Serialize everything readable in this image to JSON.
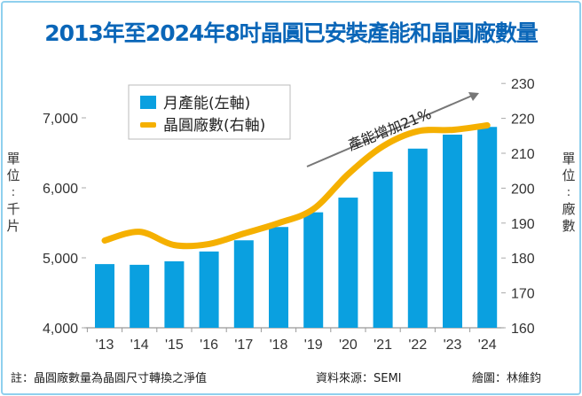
{
  "title": "2013年至2024年8吋晶圓已安裝產能和晶圓廠數量",
  "footer": {
    "note": "註：晶圓廠數量為晶圓尺寸轉換之淨值",
    "source": "資料來源：SEMI",
    "credit": "繪圖：林維鈞"
  },
  "colors": {
    "bar": "#0aa0e0",
    "line": "#f5b000",
    "title": "#0a66b8",
    "arrow": "#777777"
  },
  "chart_data": {
    "type": "bar+line",
    "title": "2013年至2024年8吋晶圓已安裝產能和晶圓廠數量",
    "categories": [
      "'13",
      "'14",
      "'15",
      "'16",
      "'17",
      "'18",
      "'19",
      "'20",
      "'21",
      "'22",
      "'23",
      "'24"
    ],
    "series": [
      {
        "name": "月產能(左軸)",
        "type": "bar",
        "axis": "left",
        "values": [
          4910,
          4900,
          4950,
          5090,
          5250,
          5440,
          5650,
          5860,
          6230,
          6560,
          6760,
          6870
        ]
      },
      {
        "name": "晶圓廠數(右軸)",
        "type": "line",
        "axis": "right",
        "values": [
          185,
          187.5,
          183.7,
          184,
          187,
          190,
          194,
          204,
          212,
          216.3,
          216.7,
          218
        ]
      }
    ],
    "left_axis": {
      "label": "單位：千片",
      "ylim": [
        4000,
        7400
      ],
      "ticks": [
        4000,
        5000,
        6000,
        7000
      ],
      "tick_labels": [
        "4,000",
        "5,000",
        "6,000",
        "7,000"
      ]
    },
    "right_axis": {
      "label": "單位：廠數",
      "ylim": [
        160,
        230
      ],
      "ticks": [
        160,
        170,
        180,
        190,
        200,
        210,
        220,
        230
      ],
      "tick_labels": [
        "160",
        "170",
        "180",
        "190",
        "200",
        "210",
        "220",
        "230"
      ]
    },
    "legend": {
      "placement": "top-left",
      "entries": [
        "月產能(左軸)",
        "晶圓廠數(右軸)"
      ]
    },
    "annotation": "產能增加21%"
  }
}
